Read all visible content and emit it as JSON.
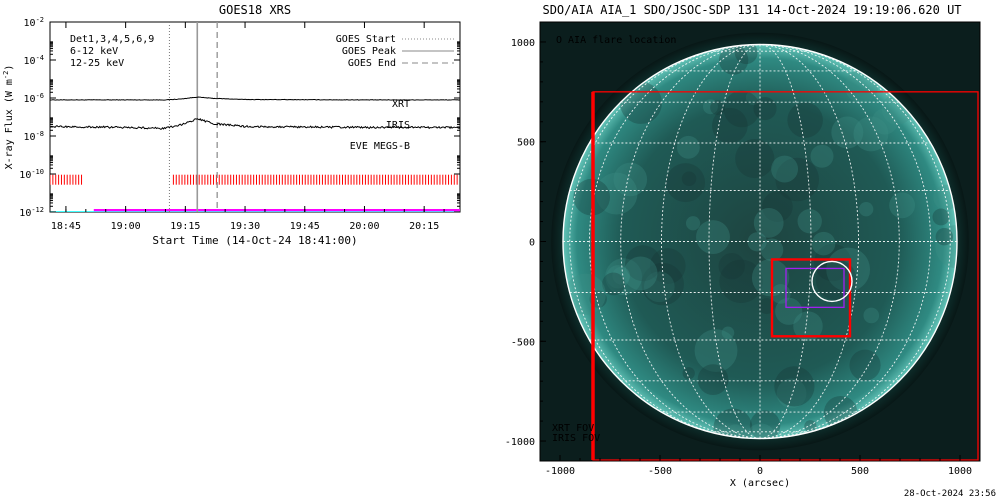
{
  "chart_data": [
    {
      "type": "line",
      "title": "GOES18 XRS",
      "ylabel": "X-ray Flux (W m",
      "ylabel_sup": "-2",
      "ylabel_close": ")",
      "xlabel": "Start Time (14-Oct-24 18:41:00)",
      "x_range": [
        "18:41",
        "20:24"
      ],
      "ylim_exp": [
        -12,
        -2
      ],
      "y_scale": "log",
      "x_ticks": [
        "18:45",
        "19:00",
        "19:15",
        "19:30",
        "19:45",
        "20:00",
        "20:15"
      ],
      "y_ticks_exp": [
        -12,
        -10,
        -8,
        -6,
        -4,
        -2
      ],
      "legend_left": [
        {
          "text": "Det1,3,4,5,6,9",
          "color": "#000000"
        },
        {
          "text": "6-12 keV",
          "color": "#ff00ff"
        },
        {
          "text": "12-25 keV",
          "color": "#00cc00"
        }
      ],
      "legend_right": [
        {
          "text": "GOES Start",
          "style": "dotted"
        },
        {
          "text": "GOES Peak",
          "style": "solid"
        },
        {
          "text": "GOES End",
          "style": "dashed"
        }
      ],
      "event_lines": {
        "start": "19:11",
        "peak": "19:18",
        "end": "19:23"
      },
      "series": [
        {
          "key": "long_channel",
          "color": "#000000",
          "x": [
            "18:41",
            "19:10",
            "19:14",
            "19:18",
            "19:22",
            "19:30",
            "20:00",
            "20:24"
          ],
          "log10_values": [
            -6.1,
            -6.1,
            -6.05,
            -5.95,
            -6.02,
            -6.08,
            -6.1,
            -6.1
          ]
        },
        {
          "key": "short_channel",
          "color": "#000000",
          "x": [
            "18:41",
            "19:00",
            "19:10",
            "19:14",
            "19:18",
            "19:22",
            "19:30",
            "20:00",
            "20:24"
          ],
          "log10_values": [
            -7.5,
            -7.55,
            -7.6,
            -7.4,
            -7.1,
            -7.35,
            -7.5,
            -7.55,
            -7.55
          ]
        }
      ],
      "instrument_labels": [
        {
          "text": "XRT",
          "color": "#ff0000"
        },
        {
          "text": "IRIS",
          "color": "#ff00ff"
        },
        {
          "text": "EVE MEGS-B",
          "color": "#00ffff"
        }
      ],
      "xrt_coverage": {
        "color": "#ff0000",
        "log10_level": -10.3,
        "x_ranges": [
          [
            "18:41",
            "18:49"
          ],
          [
            "19:12",
            "20:24"
          ]
        ]
      },
      "iris_coverage": {
        "color": "#ff00ff",
        "log10_level": -11.9,
        "x_ranges": [
          [
            "18:52",
            "20:24"
          ]
        ]
      },
      "eve_coverage": {
        "color": "#00ffff",
        "log10_level": -12.0,
        "x_ranges": [
          [
            "18:41",
            "20:24"
          ]
        ]
      }
    },
    {
      "type": "scatter",
      "title": "SDO/AIA AIA_1 SDO/JSOC-SDP 131 14-Oct-2024 19:19:06.620 UT",
      "xlabel": "X (arcsec)",
      "ylabel": "",
      "xlim": [
        -1100,
        1100
      ],
      "ylim": [
        -1100,
        1100
      ],
      "x_ticks": [
        -1000,
        -500,
        0,
        500,
        1000
      ],
      "y_ticks": [
        -1000,
        -500,
        0,
        500,
        1000
      ],
      "solar_radius_arcsec": 985,
      "flare_legend": "O AIA flare location",
      "flare_location": {
        "x": 360,
        "y": -200,
        "radius": 100
      },
      "fov": [
        {
          "name": "XRT FOV",
          "color": "#ff0000",
          "x": [
            -835,
            1090
          ],
          "y": [
            -1095,
            750
          ]
        },
        {
          "name": "XRT FOV",
          "color": "#ff0000",
          "x": [
            60,
            450
          ],
          "y": [
            -475,
            -90
          ]
        },
        {
          "name": "IRIS FOV",
          "color": "#a020f0",
          "x": [
            130,
            420
          ],
          "y": [
            -330,
            -135
          ]
        }
      ],
      "legend": [
        {
          "text": "XRT FOV",
          "color": "#ff0000"
        },
        {
          "text": "IRIS FOV",
          "color": "#ff00ff"
        }
      ]
    }
  ],
  "footer": {
    "timestamp": "28-Oct-2024 23:56"
  }
}
